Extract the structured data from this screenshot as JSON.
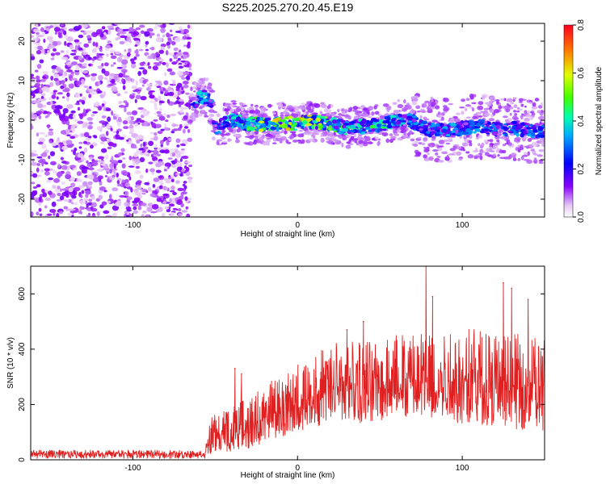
{
  "title": "S225.2025.270.20.45.E19",
  "chart_data": [
    {
      "type": "heatmap",
      "title": "S225.2025.270.20.45.E19",
      "xlabel": "Height of straight line (km)",
      "ylabel": "Frequency (Hz)",
      "xlim": [
        -162,
        150
      ],
      "ylim": [
        -24.5,
        24.5
      ],
      "xticks": [
        -100,
        0,
        100
      ],
      "yticks": [
        -20,
        -10,
        0,
        10,
        20
      ],
      "xtick_labels": [
        "-100",
        "0",
        "100"
      ],
      "ytick_labels": [
        "-20",
        "-10",
        "0",
        "10",
        "20"
      ],
      "colorbar": {
        "label": "Normalized spectral amplitude",
        "range": [
          0.0,
          0.8
        ],
        "ticks": [
          0.0,
          0.2,
          0.4,
          0.6,
          0.8
        ],
        "tick_labels": [
          "0.0",
          "0.2",
          "0.4",
          "0.6",
          "0.8"
        ],
        "colormap": "rainbow"
      },
      "noise_region": {
        "x_range": [
          -162,
          -65
        ],
        "amplitude": [
          0.03,
          0.15
        ]
      },
      "signal_trace": {
        "x": [
          -65,
          -60,
          -55,
          -52,
          -50,
          -45,
          -40,
          -30,
          -20,
          -10,
          0,
          10,
          20,
          30,
          40,
          50,
          60,
          65,
          70,
          75,
          80,
          90,
          100,
          110,
          120,
          130,
          140,
          150
        ],
        "freq": [
          4.5,
          5.5,
          6.0,
          3.0,
          -2.5,
          -1.0,
          0.0,
          -1.0,
          -1.0,
          -0.8,
          -0.8,
          -0.3,
          -1.0,
          -2.0,
          -1.5,
          -1.2,
          0.0,
          0.5,
          -0.5,
          -1.5,
          -2.5,
          -2.5,
          -2.0,
          -1.5,
          -2.5,
          -2.0,
          -2.5,
          -3.0
        ],
        "amplitude": [
          0.35,
          0.4,
          0.42,
          0.3,
          0.3,
          0.38,
          0.45,
          0.55,
          0.65,
          0.65,
          0.65,
          0.62,
          0.55,
          0.5,
          0.5,
          0.48,
          0.45,
          0.4,
          0.4,
          0.38,
          0.35,
          0.36,
          0.35,
          0.35,
          0.33,
          0.35,
          0.35,
          0.33
        ]
      }
    },
    {
      "type": "line",
      "title": "",
      "xlabel": "Height of straight line (km)",
      "ylabel": "SNR (10 * v/v)",
      "xlim": [
        -162,
        150
      ],
      "ylim": [
        0,
        700
      ],
      "xticks": [
        -100,
        0,
        100
      ],
      "yticks": [
        0,
        200,
        400,
        600
      ],
      "xtick_labels": [
        "-100",
        "0",
        "100"
      ],
      "ytick_labels": [
        "0",
        "200",
        "400",
        "600"
      ],
      "series": [
        {
          "name": "SNR",
          "color": "#e02020",
          "envelope": {
            "x": [
              -162,
              -120,
              -80,
              -56,
              -54,
              -50,
              -45,
              -40,
              -35,
              -30,
              -25,
              -20,
              -10,
              0,
              10,
              20,
              30,
              40,
              50,
              60,
              70,
              80,
              90,
              100,
              110,
              120,
              130,
              140,
              150
            ],
            "low": [
              5,
              5,
              5,
              5,
              20,
              25,
              30,
              30,
              35,
              40,
              50,
              60,
              80,
              100,
              120,
              130,
              140,
              130,
              140,
              150,
              140,
              150,
              140,
              130,
              130,
              120,
              110,
              110,
              100
            ],
            "mean": [
              22,
              22,
              22,
              22,
              80,
              90,
              100,
              105,
              110,
              115,
              130,
              150,
              180,
              200,
              230,
              250,
              265,
              270,
              275,
              280,
              285,
              290,
              285,
              280,
              280,
              270,
              265,
              260,
              255
            ],
            "high": [
              35,
              35,
              35,
              35,
              140,
              170,
              180,
              200,
              210,
              220,
              250,
              270,
              310,
              350,
              390,
              420,
              440,
              450,
              460,
              470,
              490,
              500,
              490,
              490,
              480,
              470,
              460,
              450,
              440
            ]
          },
          "spikes": [
            {
              "x": -38,
              "y": 330
            },
            {
              "x": -34,
              "y": 310
            },
            {
              "x": -28,
              "y": 200
            },
            {
              "x": 30,
              "y": 470
            },
            {
              "x": 40,
              "y": 500
            },
            {
              "x": 78,
              "y": 700
            },
            {
              "x": 82,
              "y": 590
            },
            {
              "x": 125,
              "y": 640
            },
            {
              "x": 130,
              "y": 620
            },
            {
              "x": 140,
              "y": 580
            }
          ]
        }
      ]
    }
  ]
}
